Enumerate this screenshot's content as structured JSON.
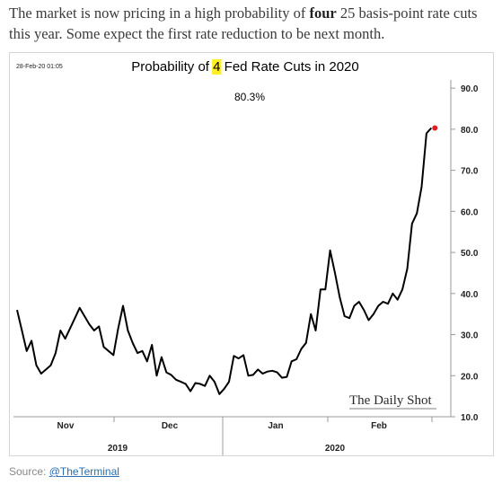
{
  "article": {
    "text_before": "The market is now pricing in a high probability of ",
    "text_bold": "four",
    "text_after": " 25 basis-point rate cuts this year. Some expect the first rate reduction to be next month."
  },
  "source": {
    "prefix": "Source: ",
    "link": "@TheTerminal"
  },
  "chart_data": {
    "type": "line",
    "timestamp": "28-Feb-20 01:05",
    "title_before": "Probability of ",
    "title_highlight": "4",
    "title_after": " Fed Rate Cuts in 2020",
    "last_value_label": "80.3%",
    "watermark": "The Daily Shot",
    "ylim": [
      10,
      92
    ],
    "y_ticks": [
      "10.0",
      "20.0",
      "30.0",
      "40.0",
      "50.0",
      "60.0",
      "70.0",
      "80.0",
      "90.0"
    ],
    "month_labels": [
      "Nov",
      "Dec",
      "Jan",
      "Feb"
    ],
    "year_labels": [
      "2019",
      "2020"
    ],
    "grid": false,
    "colors": {
      "line": "#000000",
      "last_point": "#e02020",
      "highlight": "#ffee22"
    },
    "series": [
      {
        "values": [
          36,
          31,
          26,
          28.5,
          22.5,
          20.5,
          21.5,
          22.5,
          25.5,
          31,
          29,
          31.5,
          34,
          36.5,
          34.5,
          32.5,
          31,
          32,
          27,
          26,
          25,
          31.5,
          37,
          31,
          28,
          25.5,
          26,
          23.5,
          27.5,
          20,
          24.5,
          20.8,
          20.2,
          19,
          18.5,
          18,
          16.2,
          18.2,
          18,
          17.5,
          20,
          18.5,
          15.5,
          16.8,
          18.5,
          24.8,
          24.2,
          25,
          20,
          20.2,
          21.5,
          20.5,
          21,
          21.2,
          20.8,
          19.5,
          19.7,
          23.5,
          24,
          26.5,
          28,
          35,
          31,
          41,
          41,
          50.5,
          45,
          39,
          34.5,
          34,
          37,
          38,
          36,
          33.5,
          35,
          37,
          38,
          37.5,
          40,
          38.5,
          41,
          46,
          57,
          59.5,
          66,
          79,
          80.3
        ]
      }
    ]
  }
}
